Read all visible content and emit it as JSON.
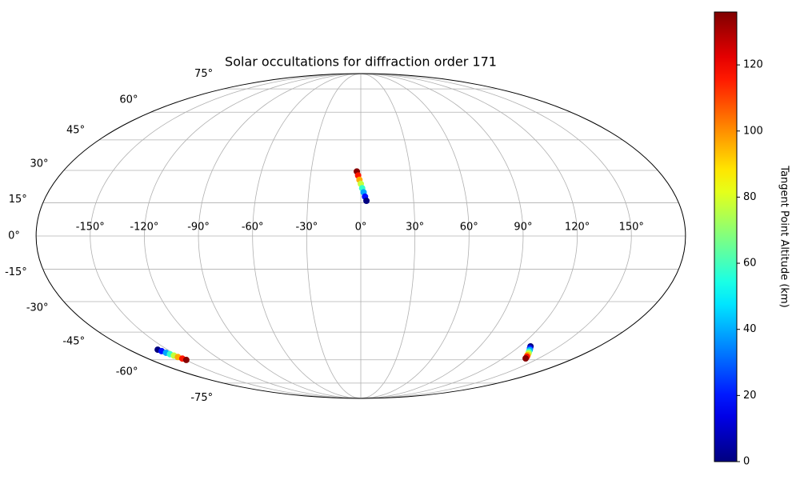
{
  "chart_data": {
    "type": "scatter",
    "projection": "mollweide",
    "title": "Solar occultations for diffraction order 171",
    "colorbar_label": "Tangent Point Altitude (km)",
    "colormap": "jet",
    "grid": true,
    "series": [
      {
        "x": [
          -2.4,
          -1.6,
          -0.8,
          0.0,
          0.8,
          1.6,
          2.4,
          3.2,
          -157.7,
          -156.6,
          -155.4,
          -154.3,
          -153.2,
          -152.1,
          -150.9,
          -149.8,
          128.3,
          129.8,
          131.4,
          132.9,
          134.5,
          136.0,
          137.6,
          139.1
        ],
        "values": [
          29.5,
          27.6,
          25.6,
          23.7,
          21.7,
          19.8,
          17.8,
          15.9,
          -54.3,
          -55.1,
          -56.0,
          -56.8,
          -57.6,
          -58.4,
          -59.3,
          -60.1,
          -52.5,
          -53.5,
          -54.4,
          -55.4,
          -56.3,
          -57.3,
          -58.2,
          -59.2
        ],
        "color_values": [
          135,
          116,
          96,
          77,
          58,
          39,
          19,
          0,
          0,
          19,
          39,
          58,
          77,
          96,
          116,
          135,
          0,
          19,
          39,
          58,
          77,
          96,
          116,
          135
        ]
      }
    ],
    "xlim": [
      -180,
      180
    ],
    "ylim": [
      -90,
      90
    ],
    "clim": [
      0,
      136
    ],
    "xticks": [
      {
        "value": -150,
        "label": "-150°"
      },
      {
        "value": -120,
        "label": "-120°"
      },
      {
        "value": -90,
        "label": "-90°"
      },
      {
        "value": -60,
        "label": "-60°"
      },
      {
        "value": -30,
        "label": "-30°"
      },
      {
        "value": 0,
        "label": "0°"
      },
      {
        "value": 30,
        "label": "30°"
      },
      {
        "value": 60,
        "label": "60°"
      },
      {
        "value": 90,
        "label": "90°"
      },
      {
        "value": 120,
        "label": "120°"
      },
      {
        "value": 150,
        "label": "150°"
      }
    ],
    "yticks": [
      {
        "value": -75,
        "label": "-75°"
      },
      {
        "value": -60,
        "label": "-60°"
      },
      {
        "value": -45,
        "label": "-45°"
      },
      {
        "value": -30,
        "label": "-30°"
      },
      {
        "value": -15,
        "label": "-15°"
      },
      {
        "value": 0,
        "label": "0°"
      },
      {
        "value": 15,
        "label": "15°"
      },
      {
        "value": 30,
        "label": "30°"
      },
      {
        "value": 45,
        "label": "45°"
      },
      {
        "value": 60,
        "label": "60°"
      },
      {
        "value": 75,
        "label": "75°"
      }
    ],
    "cticks": [
      0,
      20,
      40,
      60,
      80,
      100,
      120
    ]
  }
}
